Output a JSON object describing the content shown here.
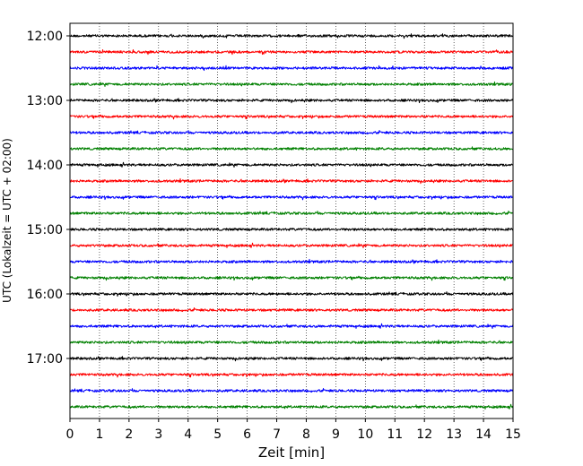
{
  "chart_data": {
    "type": "line",
    "title": "",
    "xlabel": "Zeit  [min]",
    "ylabel": "UTC (Lokalzeit = UTC + 02:00)",
    "xlim": [
      0,
      15
    ],
    "x_ticks": [
      "0",
      "1",
      "2",
      "3",
      "4",
      "5",
      "6",
      "7",
      "8",
      "9",
      "10",
      "11",
      "12",
      "13",
      "14",
      "15"
    ],
    "y_ticks": [
      "12:00",
      "13:00",
      "14:00",
      "15:00",
      "16:00",
      "17:00"
    ],
    "grid": "vertical dotted",
    "trace_interval_min": 15,
    "trace_count": 24,
    "trace_colors": [
      "#000000",
      "#ff0000",
      "#0000ff",
      "#008000"
    ],
    "series": [
      {
        "start": "12:00"
      },
      {
        "start": "12:15"
      },
      {
        "start": "12:30"
      },
      {
        "start": "12:45"
      },
      {
        "start": "13:00"
      },
      {
        "start": "13:15"
      },
      {
        "start": "13:30"
      },
      {
        "start": "13:45"
      },
      {
        "start": "14:00"
      },
      {
        "start": "14:15"
      },
      {
        "start": "14:30"
      },
      {
        "start": "14:45"
      },
      {
        "start": "15:00"
      },
      {
        "start": "15:15"
      },
      {
        "start": "15:30"
      },
      {
        "start": "15:45"
      },
      {
        "start": "16:00"
      },
      {
        "start": "16:15"
      },
      {
        "start": "16:30"
      },
      {
        "start": "16:45"
      },
      {
        "start": "17:00"
      },
      {
        "start": "17:15"
      },
      {
        "start": "17:30"
      },
      {
        "start": "17:45"
      }
    ]
  }
}
